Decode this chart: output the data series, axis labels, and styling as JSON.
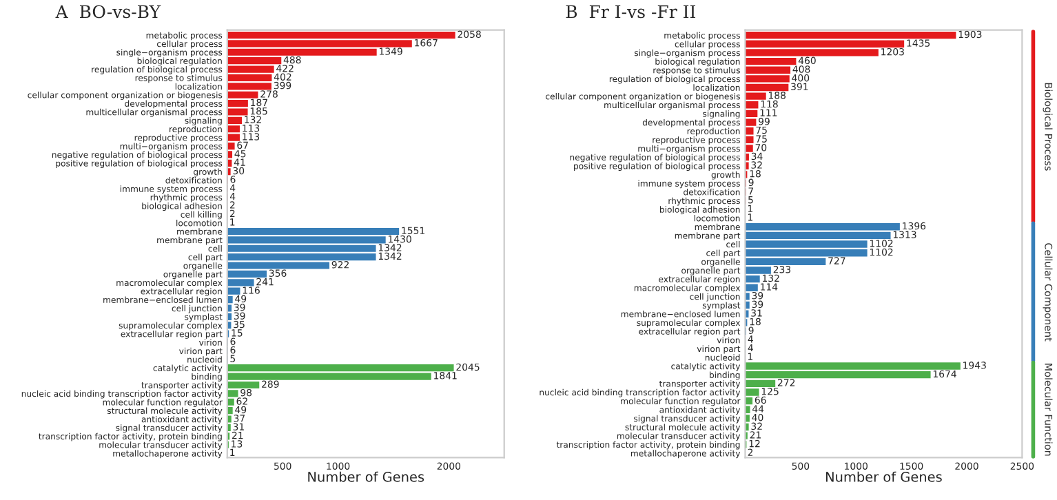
{
  "chart_data": [
    {
      "type": "bar",
      "orientation": "horizontal",
      "title": "A  BO-vs-BY",
      "xlabel": "Number of Genes",
      "data_labels": true,
      "grid": false,
      "xlim": [
        0,
        2500
      ],
      "xticks": [
        500,
        1000,
        2000
      ],
      "categories": [
        "metabolic process",
        "cellular process",
        "single−organism process",
        "biological regulation",
        "regulation of biological process",
        "response to stimulus",
        "localization",
        "cellular component organization or biogenesis",
        "developmental process",
        "multicellular organismal process",
        "signaling",
        "reproduction",
        "reproductive process",
        "multi−organism process",
        "negative regulation of biological process",
        "positive regulation of biological process",
        "growth",
        "detoxification",
        "immune system process",
        "rhythmic process",
        "biological adhesion",
        "cell killing",
        "locomotion",
        "membrane",
        "membrane part",
        "cell",
        "cell part",
        "organelle",
        "organelle part",
        "macromolecular complex",
        "extracellular region",
        "membrane−enclosed lumen",
        "cell junction",
        "symplast",
        "supramolecular complex",
        "extracellular region part",
        "virion",
        "virion part",
        "nucleoid",
        "catalytic activity",
        "binding",
        "transporter activity",
        "nucleic acid binding transcription factor activity",
        "molecular function regulator",
        "structural molecule activity",
        "antioxidant activity",
        "signal transducer activity",
        "transcription factor activity, protein binding",
        "molecular transducer activity",
        "metallochaperone activity"
      ],
      "values": [
        2058,
        1667,
        1349,
        488,
        422,
        402,
        399,
        278,
        187,
        185,
        132,
        113,
        113,
        67,
        45,
        41,
        30,
        6,
        4,
        4,
        2,
        2,
        1,
        1551,
        1430,
        1342,
        1342,
        922,
        356,
        241,
        116,
        49,
        39,
        39,
        35,
        15,
        6,
        6,
        5,
        2045,
        1841,
        289,
        98,
        62,
        49,
        37,
        31,
        21,
        13,
        1
      ],
      "colors": [
        "#e41a1c",
        "#e41a1c",
        "#e41a1c",
        "#e41a1c",
        "#e41a1c",
        "#e41a1c",
        "#e41a1c",
        "#e41a1c",
        "#e41a1c",
        "#e41a1c",
        "#e41a1c",
        "#e41a1c",
        "#e41a1c",
        "#e41a1c",
        "#e41a1c",
        "#e41a1c",
        "#e41a1c",
        "#e41a1c",
        "#e41a1c",
        "#e41a1c",
        "#e41a1c",
        "#e41a1c",
        "#e41a1c",
        "#377eb8",
        "#377eb8",
        "#377eb8",
        "#377eb8",
        "#377eb8",
        "#377eb8",
        "#377eb8",
        "#377eb8",
        "#377eb8",
        "#377eb8",
        "#377eb8",
        "#377eb8",
        "#377eb8",
        "#377eb8",
        "#377eb8",
        "#377eb8",
        "#4daf4a",
        "#4daf4a",
        "#4daf4a",
        "#4daf4a",
        "#4daf4a",
        "#4daf4a",
        "#4daf4a",
        "#4daf4a",
        "#4daf4a",
        "#4daf4a",
        "#4daf4a"
      ]
    },
    {
      "type": "bar",
      "orientation": "horizontal",
      "title": "B  Fr I-vs -Fr II",
      "xlabel": "Number of Genes",
      "data_labels": true,
      "grid": false,
      "xlim": [
        0,
        2500
      ],
      "xticks": [
        500,
        1000,
        1500,
        2000,
        2500
      ],
      "annotations": [
        "Biological Process",
        "Cellular Component",
        "Molecular Function"
      ],
      "categories": [
        "metabolic process",
        "cellular process",
        "single−organism process",
        "biological regulation",
        "response to stimulus",
        "regulation of biological process",
        "localization",
        "cellular component organization or biogenesis",
        "multicellular organismal process",
        "signaling",
        "developmental process",
        "reproduction",
        "reproductive process",
        "multi−organism process",
        "negative regulation of biological process",
        "positive regulation of biological process",
        "growth",
        "immune system process",
        "detoxification",
        "rhythmic process",
        "biological adhesion",
        "locomotion",
        "membrane",
        "membrane part",
        "cell",
        "cell part",
        "organelle",
        "organelle part",
        "extracellular region",
        "macromolecular complex",
        "cell junction",
        "symplast",
        "membrane−enclosed lumen",
        "supramolecular complex",
        "extracellular region part",
        "virion",
        "virion part",
        "nucleoid",
        "catalytic activity",
        "binding",
        "transporter activity",
        "nucleic acid binding transcription factor activity",
        "molecular function regulator",
        "antioxidant activity",
        "signal transducer activity",
        "structural molecule activity",
        "molecular transducer activity",
        "transcription factor activity, protein binding",
        "metallochaperone activity"
      ],
      "values": [
        1903,
        1435,
        1203,
        460,
        408,
        400,
        391,
        188,
        118,
        111,
        99,
        75,
        75,
        70,
        34,
        32,
        18,
        9,
        7,
        5,
        1,
        1,
        1396,
        1313,
        1102,
        1102,
        727,
        233,
        132,
        114,
        39,
        39,
        31,
        18,
        9,
        4,
        4,
        1,
        1943,
        1674,
        272,
        125,
        66,
        44,
        40,
        32,
        21,
        12,
        2
      ],
      "colors": [
        "#e41a1c",
        "#e41a1c",
        "#e41a1c",
        "#e41a1c",
        "#e41a1c",
        "#e41a1c",
        "#e41a1c",
        "#e41a1c",
        "#e41a1c",
        "#e41a1c",
        "#e41a1c",
        "#e41a1c",
        "#e41a1c",
        "#e41a1c",
        "#e41a1c",
        "#e41a1c",
        "#e41a1c",
        "#e41a1c",
        "#e41a1c",
        "#e41a1c",
        "#e41a1c",
        "#e41a1c",
        "#377eb8",
        "#377eb8",
        "#377eb8",
        "#377eb8",
        "#377eb8",
        "#377eb8",
        "#377eb8",
        "#377eb8",
        "#377eb8",
        "#377eb8",
        "#377eb8",
        "#377eb8",
        "#377eb8",
        "#377eb8",
        "#377eb8",
        "#377eb8",
        "#4daf4a",
        "#4daf4a",
        "#4daf4a",
        "#4daf4a",
        "#4daf4a",
        "#4daf4a",
        "#4daf4a",
        "#4daf4a",
        "#4daf4a",
        "#4daf4a",
        "#4daf4a"
      ]
    }
  ]
}
